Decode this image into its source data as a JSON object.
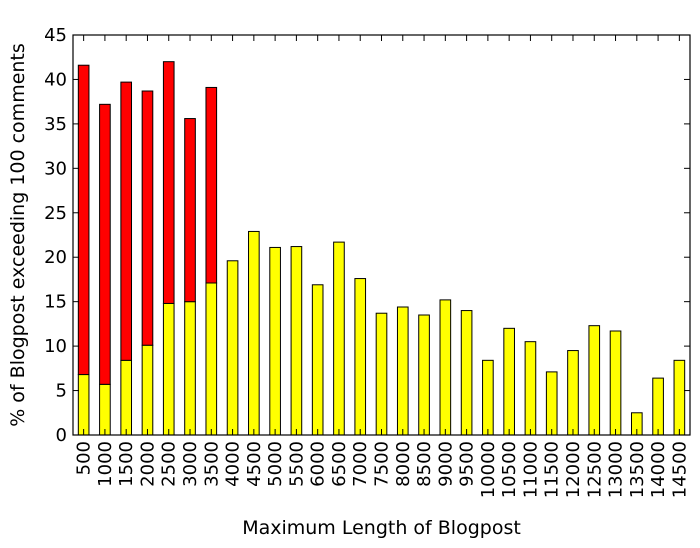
{
  "chart_data": {
    "type": "bar",
    "stacked": true,
    "title": "",
    "xlabel": "Maximum Length of Blogpost",
    "ylabel": "% of Blogpost exceeding 100 comments",
    "ylim": [
      0,
      45
    ],
    "yticks": [
      0,
      5,
      10,
      15,
      20,
      25,
      30,
      35,
      40,
      45
    ],
    "grid": false,
    "categories": [
      "500",
      "1000",
      "1500",
      "2000",
      "2500",
      "3000",
      "3500",
      "4000",
      "4500",
      "5000",
      "5500",
      "6000",
      "6500",
      "7000",
      "7500",
      "8000",
      "8500",
      "9000",
      "9500",
      "10000",
      "10500",
      "11000",
      "11500",
      "12000",
      "12500",
      "13000",
      "13500",
      "14000",
      "14500"
    ],
    "series": [
      {
        "color": "#ffff00",
        "values": [
          6.8,
          5.7,
          8.4,
          10.1,
          14.8,
          15.0,
          17.1,
          19.6,
          22.9,
          21.1,
          21.2,
          16.9,
          21.7,
          17.6,
          13.7,
          14.4,
          13.5,
          15.2,
          14.0,
          8.4,
          12.0,
          10.5,
          7.1,
          9.5,
          12.3,
          11.7,
          2.5,
          6.4,
          8.4
        ]
      },
      {
        "color": "#ff0000",
        "values": [
          34.8,
          31.5,
          31.3,
          28.6,
          27.2,
          20.6,
          22.0,
          0,
          0,
          0,
          0,
          0,
          0,
          0,
          0,
          0,
          0,
          0,
          0,
          0,
          0,
          0,
          0,
          0,
          0,
          0,
          0,
          0,
          0
        ]
      }
    ]
  }
}
